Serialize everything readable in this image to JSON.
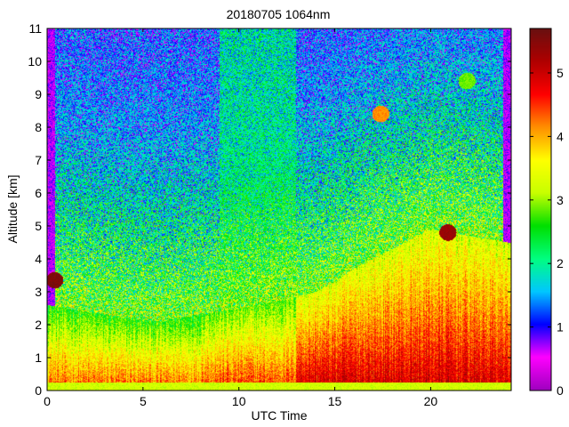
{
  "chart_data": {
    "type": "heatmap",
    "title": "20180705 1064nm",
    "xlabel": "UTC Time",
    "ylabel": "Altitude [km]",
    "xlim": [
      0,
      24.2
    ],
    "ylim": [
      0,
      11
    ],
    "x_ticks": [
      0,
      5,
      10,
      15,
      20
    ],
    "y_ticks": [
      0,
      1,
      2,
      3,
      4,
      5,
      6,
      7,
      8,
      9,
      10,
      11
    ],
    "colorbar": {
      "range": [
        0,
        5.7
      ],
      "ticks": [
        0,
        1,
        2,
        3,
        4,
        5
      ],
      "colormap": [
        "#a000c0",
        "#ff00ff",
        "#0000ff",
        "#00c8ff",
        "#00ff80",
        "#00e000",
        "#c8ff00",
        "#ffff00",
        "#ff9000",
        "#ff0000",
        "#b00000",
        "#6a1010"
      ]
    },
    "features": {
      "surface_layer_top_km": 0.25,
      "boundary_layer_top_km": [
        [
          0,
          2.6
        ],
        [
          2,
          2.4
        ],
        [
          4,
          2.2
        ],
        [
          6,
          2.1
        ],
        [
          8,
          2.3
        ],
        [
          10,
          2.5
        ],
        [
          12,
          2.7
        ],
        [
          14,
          3.0
        ],
        [
          15,
          3.3
        ],
        [
          16,
          3.7
        ],
        [
          18,
          4.3
        ],
        [
          20,
          4.9
        ],
        [
          22,
          4.7
        ],
        [
          24,
          4.5
        ]
      ],
      "cloud_patches": [
        {
          "x": 0.4,
          "alt": 3.35,
          "level": 5.7
        },
        {
          "x": 20.9,
          "alt": 4.8,
          "level": 5.5
        },
        {
          "x": 17.4,
          "alt": 8.4,
          "level": 4.3
        },
        {
          "x": 21.9,
          "alt": 9.4,
          "level": 3.0
        }
      ]
    }
  }
}
